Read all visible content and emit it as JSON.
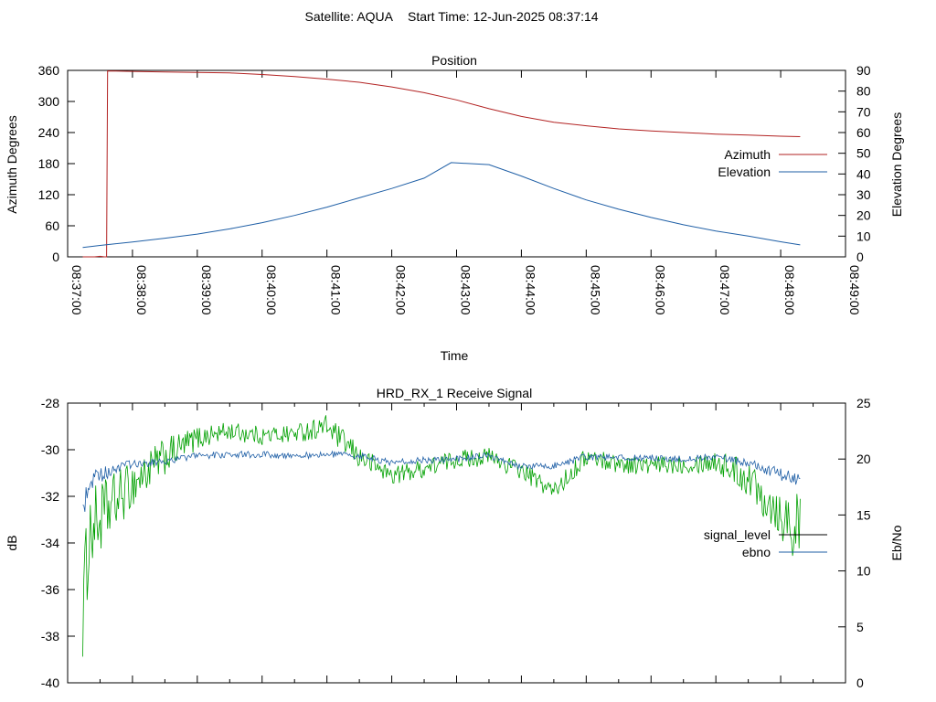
{
  "header": {
    "satellite_label": "Satellite: AQUA",
    "start_time_label": "Start Time: 12-Jun-2025 08:37:14"
  },
  "chart_data": [
    {
      "type": "line",
      "title": "Position",
      "xlabel": "Time",
      "ylabel": "Azimuth Degrees",
      "y2label": "Elevation Degrees",
      "x_ticks": [
        "08:37:00",
        "08:38:00",
        "08:39:00",
        "08:40:00",
        "08:41:00",
        "08:42:00",
        "08:43:00",
        "08:44:00",
        "08:45:00",
        "08:46:00",
        "08:47:00",
        "08:48:00",
        "08:49:00"
      ],
      "xlim": [
        "08:37:00",
        "08:49:00"
      ],
      "ylim": [
        0,
        360
      ],
      "y_ticks": [
        "0",
        "60",
        "120",
        "180",
        "240",
        "300",
        "360"
      ],
      "y2lim": [
        0,
        90
      ],
      "y2_ticks": [
        "0",
        "10",
        "20",
        "30",
        "40",
        "50",
        "60",
        "70",
        "80",
        "90"
      ],
      "grid": false,
      "legend_position": "right",
      "series": [
        {
          "name": "Azimuth",
          "axis": "y",
          "color": "#b22222",
          "x": [
            "08:37:14",
            "08:37:25",
            "08:37:30",
            "08:37:34",
            "08:37:36",
            "08:37:37",
            "08:38:00",
            "08:38:30",
            "08:39:00",
            "08:39:30",
            "08:40:00",
            "08:40:30",
            "08:41:00",
            "08:41:30",
            "08:42:00",
            "08:42:30",
            "08:43:00",
            "08:43:30",
            "08:44:00",
            "08:44:30",
            "08:45:00",
            "08:45:30",
            "08:46:00",
            "08:46:30",
            "08:47:00",
            "08:47:30",
            "08:48:00",
            "08:48:18"
          ],
          "values": [
            0,
            0,
            1,
            0,
            0,
            359,
            358,
            357,
            356,
            355,
            352,
            348,
            343,
            337,
            328,
            317,
            303,
            286,
            271,
            260,
            253,
            247,
            243,
            240,
            237,
            235,
            233,
            232
          ]
        },
        {
          "name": "Elevation",
          "axis": "y2",
          "color": "#1f5fa6",
          "x": [
            "08:37:14",
            "08:37:30",
            "08:38:00",
            "08:38:30",
            "08:39:00",
            "08:39:30",
            "08:40:00",
            "08:40:30",
            "08:41:00",
            "08:41:30",
            "08:42:00",
            "08:42:30",
            "08:42:55",
            "08:43:30",
            "08:44:00",
            "08:44:30",
            "08:45:00",
            "08:45:30",
            "08:46:00",
            "08:46:30",
            "08:47:00",
            "08:47:30",
            "08:48:00",
            "08:48:18"
          ],
          "values": [
            4.5,
            5.5,
            7.2,
            9,
            11,
            13.5,
            16.5,
            20,
            24,
            28.5,
            33,
            38,
            45.5,
            44.5,
            39,
            33,
            27.5,
            23,
            19,
            15.5,
            12.5,
            10,
            7.3,
            5.8
          ]
        }
      ]
    },
    {
      "type": "line",
      "title": "HRD_RX_1 Receive Signal",
      "xlabel": "",
      "ylabel": "dB",
      "y2label": "Eb/No",
      "ylim": [
        -40,
        -28
      ],
      "y_ticks": [
        "-40",
        "-38",
        "-36",
        "-34",
        "-32",
        "-30",
        "-28"
      ],
      "y2lim": [
        0,
        25
      ],
      "y2_ticks": [
        "0",
        "5",
        "10",
        "15",
        "20",
        "25"
      ],
      "grid": false,
      "legend_position": "right",
      "legend_entries": [
        {
          "name": "signal_level",
          "color": "#000000"
        },
        {
          "name": "ebno",
          "color": "#1f5fa6"
        }
      ],
      "series": [
        {
          "name": "signal_level",
          "axis": "y",
          "color": "#00a000",
          "x": [
            "08:37:14",
            "08:37:20",
            "08:37:30",
            "08:37:45",
            "08:38:00",
            "08:38:30",
            "08:39:00",
            "08:39:30",
            "08:40:00",
            "08:40:30",
            "08:41:00",
            "08:41:30",
            "08:42:00",
            "08:42:30",
            "08:43:00",
            "08:43:30",
            "08:44:00",
            "08:44:30",
            "08:45:00",
            "08:45:30",
            "08:46:00",
            "08:46:30",
            "08:47:00",
            "08:47:30",
            "08:48:00",
            "08:48:18"
          ],
          "values": [
            -37,
            -33.5,
            -33,
            -32.2,
            -31.5,
            -30.3,
            -29.5,
            -29.2,
            -29.4,
            -29.3,
            -29.0,
            -30.3,
            -31.1,
            -30.8,
            -30.4,
            -30.3,
            -30.9,
            -31.8,
            -30.3,
            -30.6,
            -30.7,
            -30.6,
            -30.5,
            -31.2,
            -32.7,
            -33.5
          ],
          "noise_amplitude": [
            2.2,
            1.8,
            1.6,
            1.3,
            1.0,
            0.8,
            0.5,
            0.4,
            0.4,
            0.4,
            0.5,
            0.5,
            0.4,
            0.4,
            0.4,
            0.4,
            0.4,
            0.4,
            0.4,
            0.4,
            0.4,
            0.4,
            0.5,
            0.8,
            1.2,
            1.6
          ]
        },
        {
          "name": "ebno",
          "axis": "y2",
          "color": "#1f5fa6",
          "x": [
            "08:37:14",
            "08:37:20",
            "08:37:30",
            "08:37:45",
            "08:38:00",
            "08:38:30",
            "08:39:00",
            "08:39:30",
            "08:40:00",
            "08:40:30",
            "08:41:00",
            "08:41:30",
            "08:42:00",
            "08:42:30",
            "08:43:00",
            "08:43:30",
            "08:44:00",
            "08:44:30",
            "08:45:00",
            "08:45:30",
            "08:46:00",
            "08:46:30",
            "08:47:00",
            "08:47:30",
            "08:48:00",
            "08:48:18"
          ],
          "values": [
            15.5,
            18,
            18.5,
            19.2,
            19.5,
            19.8,
            20.3,
            20.4,
            20.4,
            20.3,
            20.4,
            20.3,
            19.7,
            19.9,
            20.0,
            20.3,
            19.3,
            19.4,
            20.2,
            20.1,
            20.1,
            20.0,
            20.2,
            19.6,
            18.6,
            18.0
          ],
          "noise_amplitude": [
            1.5,
            0.9,
            0.7,
            0.5,
            0.4,
            0.3,
            0.3,
            0.3,
            0.3,
            0.3,
            0.3,
            0.3,
            0.3,
            0.3,
            0.3,
            0.3,
            0.3,
            0.3,
            0.3,
            0.3,
            0.3,
            0.3,
            0.3,
            0.4,
            0.6,
            0.9
          ]
        }
      ]
    }
  ]
}
